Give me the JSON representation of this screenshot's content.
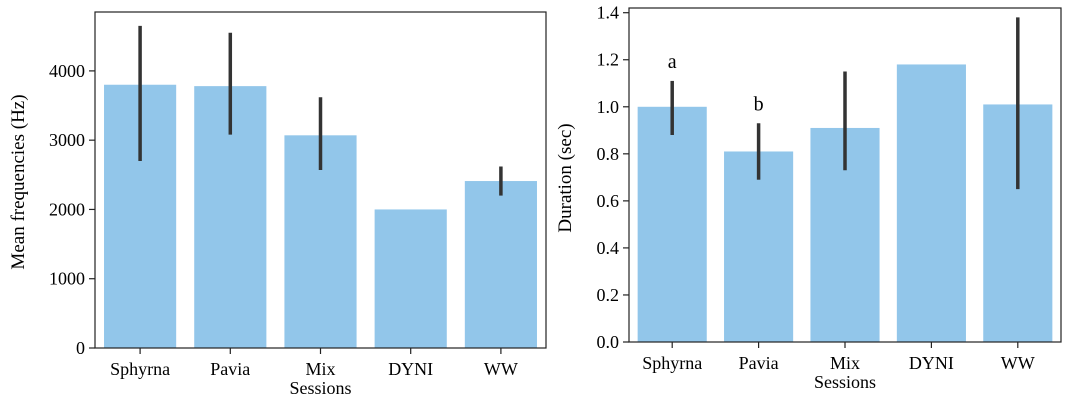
{
  "chart_data": [
    {
      "type": "bar",
      "categories": [
        "Sphyrna",
        "Pavia",
        "Mix Sessions",
        "DYNI",
        "WW"
      ],
      "category_lines": [
        [
          "Sphyrna"
        ],
        [
          "Pavia"
        ],
        [
          "Mix",
          "Sessions"
        ],
        [
          "DYNI"
        ],
        [
          "WW"
        ]
      ],
      "values": [
        3800,
        3780,
        3070,
        2000,
        2410
      ],
      "error_low": [
        2700,
        3080,
        2570,
        null,
        2200
      ],
      "error_high": [
        4650,
        4550,
        3620,
        null,
        2620
      ],
      "ylabel": "Mean frequencies (Hz)",
      "ylim": [
        0,
        4850
      ],
      "yticks": [
        0,
        1000,
        2000,
        3000,
        4000
      ],
      "ytick_labels": [
        "0",
        "1000",
        "2000",
        "3000",
        "4000"
      ],
      "grid": false,
      "bar_color": "#92c6ea",
      "annotations": []
    },
    {
      "type": "bar",
      "categories": [
        "Sphyrna",
        "Pavia",
        "Mix Sessions",
        "DYNI",
        "WW"
      ],
      "category_lines": [
        [
          "Sphyrna"
        ],
        [
          "Pavia"
        ],
        [
          "Mix",
          "Sessions"
        ],
        [
          "DYNI"
        ],
        [
          "WW"
        ]
      ],
      "values": [
        1.0,
        0.81,
        0.91,
        1.18,
        1.01
      ],
      "error_low": [
        0.88,
        0.69,
        0.73,
        null,
        0.65
      ],
      "error_high": [
        1.11,
        0.93,
        1.15,
        null,
        1.38
      ],
      "ylabel": "Duration (sec)",
      "ylim": [
        0,
        1.42
      ],
      "yticks": [
        0.0,
        0.2,
        0.4,
        0.6,
        0.8,
        1.0,
        1.2,
        1.4
      ],
      "ytick_labels": [
        "0.0",
        "0.2",
        "0.4",
        "0.6",
        "0.8",
        "1.0",
        "1.2",
        "1.4"
      ],
      "grid": false,
      "bar_color": "#92c6ea",
      "annotations": [
        {
          "category": "Sphyrna",
          "text": "a"
        },
        {
          "category": "Pavia",
          "text": "b"
        }
      ]
    }
  ]
}
